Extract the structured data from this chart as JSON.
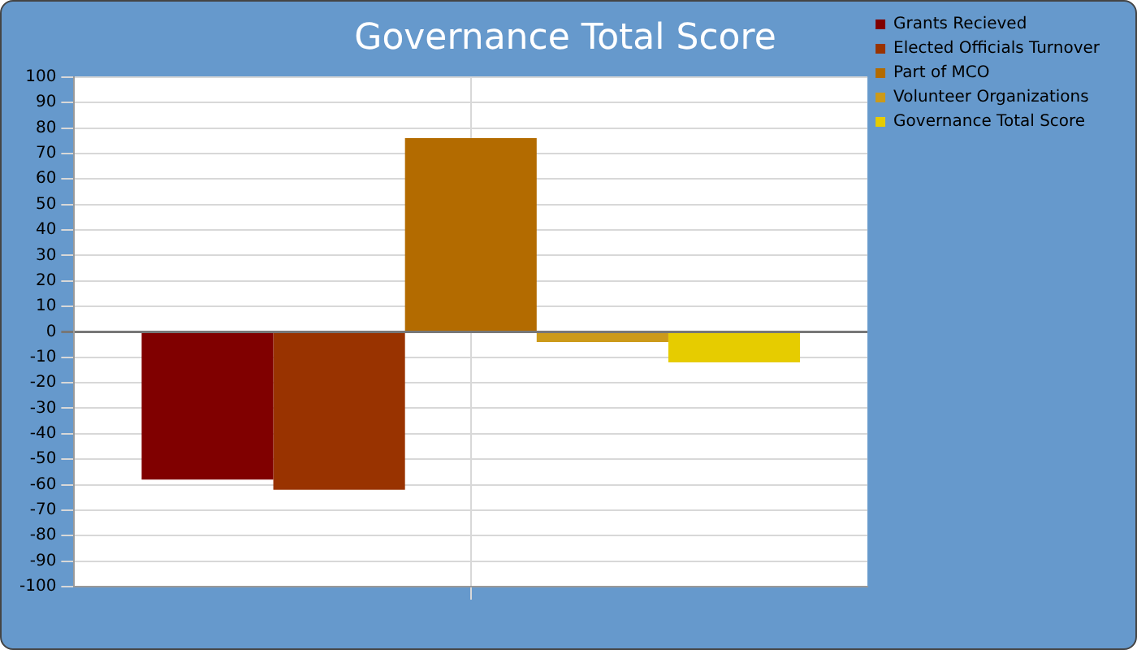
{
  "chart_data": {
    "type": "bar",
    "title": "Governance Total Score",
    "categories": [
      null
    ],
    "series": [
      {
        "name": "Grants Recieved",
        "color": "#800000",
        "values": [
          -58
        ]
      },
      {
        "name": "Elected Officials Turnover",
        "color": "#993300",
        "values": [
          -62
        ]
      },
      {
        "name": "Part of MCO",
        "color": "#b36b00",
        "values": [
          76
        ]
      },
      {
        "name": "Volunteer Organizations",
        "color": "#cc9a1a",
        "values": [
          -4
        ]
      },
      {
        "name": "Governance Total Score",
        "color": "#e6cc00",
        "values": [
          -12
        ]
      }
    ],
    "ylim": [
      -100,
      100
    ],
    "yticks": [
      -100,
      -90,
      -80,
      -70,
      -60,
      -50,
      -40,
      -30,
      -20,
      -10,
      0,
      10,
      20,
      30,
      40,
      50,
      60,
      70,
      80,
      90,
      100
    ],
    "grid": true,
    "legend": "top right"
  }
}
